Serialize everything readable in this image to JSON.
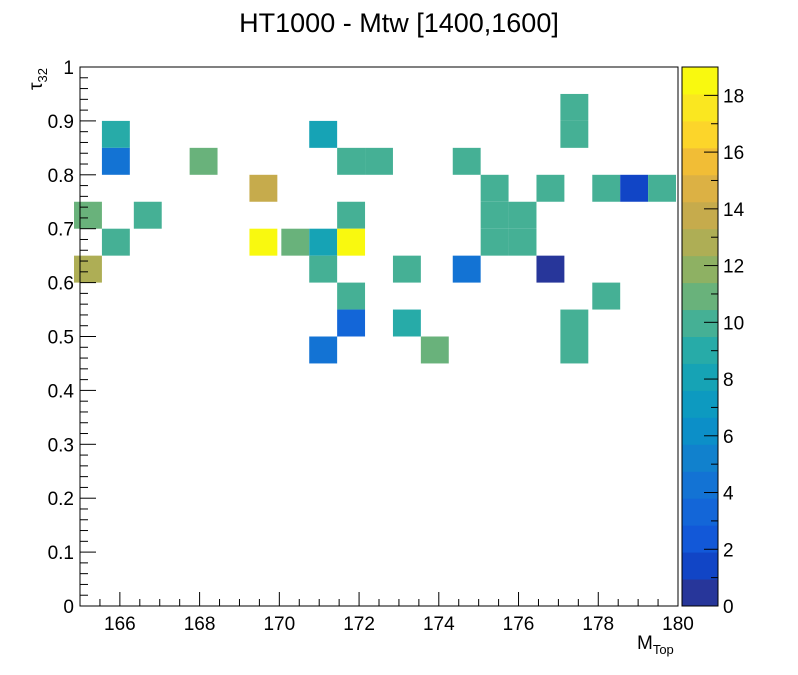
{
  "chart_data": {
    "type": "heatmap",
    "title": "HT1000 - Mtw [1400,1600]",
    "xlabel": {
      "main": "M",
      "sub": "Top"
    },
    "ylabel": {
      "main": "τ",
      "sub": "32"
    },
    "xlim": [
      165,
      180
    ],
    "ylim": [
      0,
      1
    ],
    "x_tick_labels": [
      "166",
      "168",
      "170",
      "172",
      "174",
      "176",
      "178",
      "180"
    ],
    "y_tick_labels": [
      "0",
      "0.1",
      "0.2",
      "0.3",
      "0.4",
      "0.5",
      "0.6",
      "0.7",
      "0.8",
      "0.9",
      "1"
    ],
    "colorbar_range": [
      0,
      19
    ],
    "colorbar_tick_labels": [
      "0",
      "2",
      "4",
      "6",
      "8",
      "10",
      "12",
      "14",
      "16",
      "18"
    ],
    "bin_width_x": 0.7,
    "bin_width_y": 0.05,
    "cells": [
      {
        "x": 177.4,
        "y": 0.875,
        "v": 10
      },
      {
        "x": 177.4,
        "y": 0.925,
        "v": 10
      },
      {
        "x": 165.9,
        "y": 0.875,
        "v": 9
      },
      {
        "x": 171.1,
        "y": 0.875,
        "v": 8
      },
      {
        "x": 165.9,
        "y": 0.825,
        "v": 4
      },
      {
        "x": 168.1,
        "y": 0.825,
        "v": 11
      },
      {
        "x": 171.8,
        "y": 0.825,
        "v": 10
      },
      {
        "x": 172.5,
        "y": 0.825,
        "v": 10
      },
      {
        "x": 174.7,
        "y": 0.825,
        "v": 10
      },
      {
        "x": 169.6,
        "y": 0.775,
        "v": 14
      },
      {
        "x": 175.4,
        "y": 0.775,
        "v": 10
      },
      {
        "x": 176.8,
        "y": 0.775,
        "v": 10
      },
      {
        "x": 178.2,
        "y": 0.775,
        "v": 10
      },
      {
        "x": 178.9,
        "y": 0.775,
        "v": 1
      },
      {
        "x": 179.6,
        "y": 0.775,
        "v": 10
      },
      {
        "x": 165.2,
        "y": 0.725,
        "v": 11
      },
      {
        "x": 166.7,
        "y": 0.725,
        "v": 10
      },
      {
        "x": 171.8,
        "y": 0.725,
        "v": 10
      },
      {
        "x": 175.4,
        "y": 0.725,
        "v": 10
      },
      {
        "x": 176.1,
        "y": 0.725,
        "v": 10
      },
      {
        "x": 165.9,
        "y": 0.675,
        "v": 10
      },
      {
        "x": 169.6,
        "y": 0.675,
        "v": 19
      },
      {
        "x": 170.4,
        "y": 0.675,
        "v": 11
      },
      {
        "x": 171.1,
        "y": 0.675,
        "v": 8
      },
      {
        "x": 171.8,
        "y": 0.675,
        "v": 19
      },
      {
        "x": 175.4,
        "y": 0.675,
        "v": 10
      },
      {
        "x": 176.1,
        "y": 0.675,
        "v": 10
      },
      {
        "x": 165.2,
        "y": 0.625,
        "v": 13
      },
      {
        "x": 171.1,
        "y": 0.625,
        "v": 10
      },
      {
        "x": 173.2,
        "y": 0.625,
        "v": 10
      },
      {
        "x": 174.7,
        "y": 0.625,
        "v": 4
      },
      {
        "x": 176.8,
        "y": 0.625,
        "v": 0
      },
      {
        "x": 171.8,
        "y": 0.575,
        "v": 10
      },
      {
        "x": 178.2,
        "y": 0.575,
        "v": 10
      },
      {
        "x": 171.8,
        "y": 0.525,
        "v": 3
      },
      {
        "x": 173.2,
        "y": 0.525,
        "v": 9
      },
      {
        "x": 177.4,
        "y": 0.525,
        "v": 10
      },
      {
        "x": 171.1,
        "y": 0.475,
        "v": 4
      },
      {
        "x": 173.9,
        "y": 0.475,
        "v": 11
      },
      {
        "x": 177.4,
        "y": 0.475,
        "v": 10
      }
    ]
  }
}
